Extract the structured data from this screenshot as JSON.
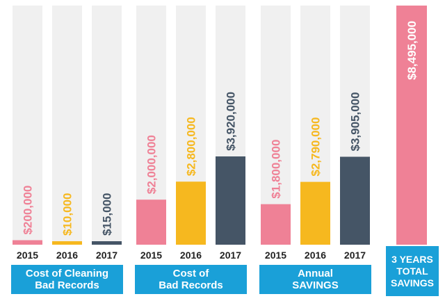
{
  "chart_data": {
    "type": "bar",
    "ylim": [
      0,
      8495000
    ],
    "colors": {
      "2015": "#ef8196",
      "2016": "#f6b81f",
      "2017": "#455566",
      "total": "#ef8196",
      "track": "#f0f0f0",
      "caption": "#1aa0d8"
    },
    "groups": [
      {
        "caption": "Cost of Cleaning\nBad Records",
        "categories": [
          "2015",
          "2016",
          "2017"
        ],
        "values": [
          200000,
          10000,
          15000
        ],
        "labels": [
          "$200,000",
          "$10,000",
          "$15,000"
        ]
      },
      {
        "caption": "Cost of\nBad Records",
        "categories": [
          "2015",
          "2016",
          "2017"
        ],
        "values": [
          2000000,
          2800000,
          3920000
        ],
        "labels": [
          "$2,000,000",
          "$2,800,000",
          "$3,920,000"
        ]
      },
      {
        "caption": "Annual\nSAVINGS",
        "categories": [
          "2015",
          "2016",
          "2017"
        ],
        "values": [
          1800000,
          2790000,
          3905000
        ],
        "labels": [
          "$1,800,000",
          "$2,790,000",
          "$3,905,000"
        ]
      }
    ],
    "total": {
      "caption": "3 YEARS\nTOTAL\nSAVINGS",
      "value": 8495000,
      "label": "$8,495,000"
    }
  }
}
